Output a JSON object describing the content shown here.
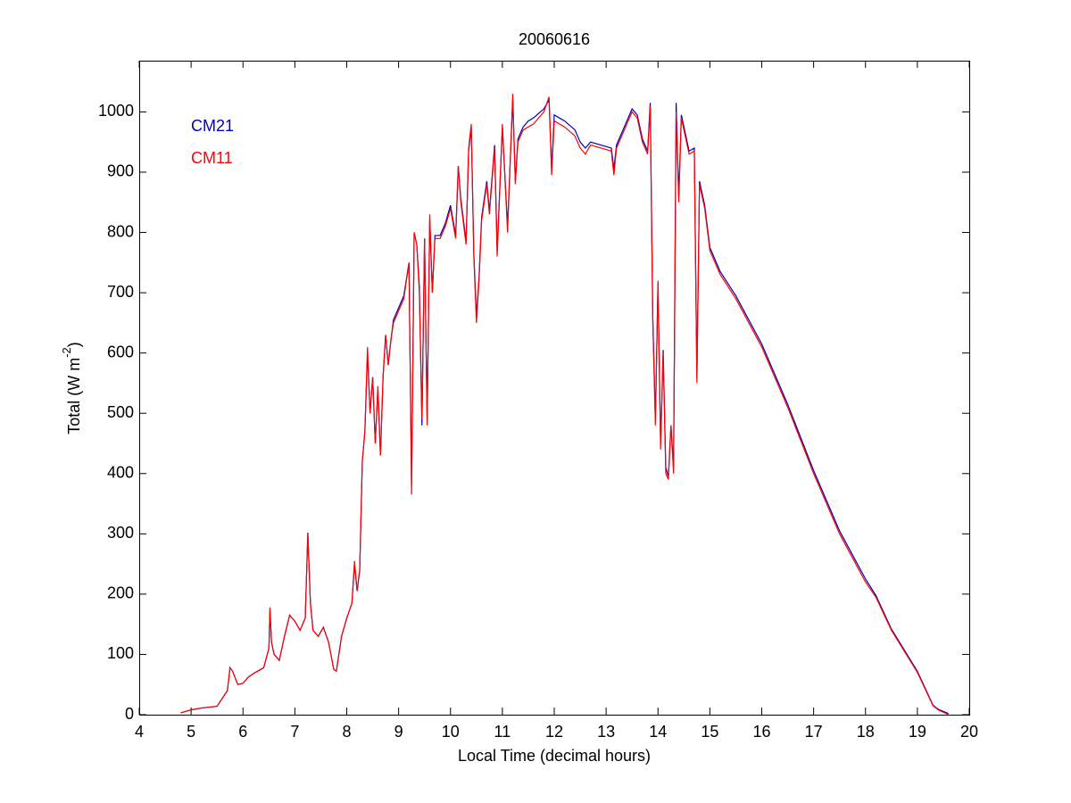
{
  "chart_data": {
    "type": "line",
    "title": "20060616",
    "xlabel": "Local Time (decimal hours)",
    "ylabel": {
      "text": "Total (W m",
      "superscript": "-2",
      "suffix": ")"
    },
    "legend": "upper left",
    "xlim": [
      4,
      20
    ],
    "xticks": [
      4,
      5,
      6,
      7,
      8,
      9,
      10,
      11,
      12,
      13,
      14,
      15,
      16,
      17,
      18,
      19,
      20
    ],
    "ylim": [
      0,
      1085
    ],
    "yticks": [
      0,
      100,
      200,
      300,
      400,
      500,
      600,
      700,
      800,
      900,
      1000
    ],
    "x": [
      4.8,
      5.0,
      5.2,
      5.5,
      5.7,
      5.75,
      5.8,
      5.9,
      6.0,
      6.1,
      6.2,
      6.4,
      6.5,
      6.52,
      6.55,
      6.6,
      6.7,
      6.8,
      6.9,
      7.0,
      7.1,
      7.2,
      7.25,
      7.3,
      7.35,
      7.45,
      7.55,
      7.65,
      7.75,
      7.8,
      7.9,
      8.0,
      8.1,
      8.15,
      8.2,
      8.25,
      8.3,
      8.35,
      8.4,
      8.45,
      8.5,
      8.55,
      8.6,
      8.65,
      8.7,
      8.75,
      8.8,
      8.85,
      8.9,
      9.0,
      9.1,
      9.2,
      9.25,
      9.3,
      9.35,
      9.4,
      9.45,
      9.5,
      9.55,
      9.6,
      9.65,
      9.7,
      9.8,
      9.9,
      10.0,
      10.1,
      10.15,
      10.2,
      10.3,
      10.35,
      10.4,
      10.45,
      10.5,
      10.55,
      10.6,
      10.7,
      10.75,
      10.85,
      10.9,
      11.0,
      11.1,
      11.2,
      11.25,
      11.3,
      11.4,
      11.5,
      11.6,
      11.8,
      11.9,
      11.95,
      12.0,
      12.2,
      12.4,
      12.5,
      12.6,
      12.7,
      12.9,
      13.1,
      13.15,
      13.2,
      13.4,
      13.5,
      13.6,
      13.7,
      13.8,
      13.85,
      13.9,
      13.95,
      14.0,
      14.05,
      14.1,
      14.15,
      14.2,
      14.25,
      14.3,
      14.35,
      14.4,
      14.45,
      14.5,
      14.6,
      14.7,
      14.75,
      14.8,
      14.9,
      15.0,
      15.2,
      15.5,
      16.0,
      16.5,
      17.0,
      17.5,
      18.0,
      18.2,
      18.5,
      19.0,
      19.3,
      19.4,
      19.6
    ],
    "series": [
      {
        "name": "CM21",
        "color": "#0000bb",
        "values": [
          3,
          8,
          11,
          14,
          40,
          78,
          72,
          50,
          52,
          62,
          68,
          78,
          110,
          172,
          120,
          100,
          90,
          130,
          165,
          155,
          140,
          160,
          302,
          185,
          140,
          130,
          145,
          120,
          75,
          72,
          130,
          160,
          185,
          250,
          205,
          240,
          420,
          470,
          600,
          500,
          560,
          450,
          540,
          430,
          560,
          630,
          580,
          620,
          655,
          675,
          695,
          750,
          380,
          800,
          780,
          710,
          480,
          790,
          490,
          820,
          700,
          795,
          795,
          815,
          845,
          795,
          910,
          855,
          785,
          935,
          975,
          765,
          660,
          725,
          825,
          885,
          835,
          945,
          770,
          975,
          810,
          1020,
          885,
          955,
          975,
          985,
          990,
          1005,
          1020,
          905,
          995,
          985,
          970,
          950,
          940,
          950,
          945,
          940,
          905,
          945,
          985,
          1005,
          995,
          955,
          935,
          1015,
          660,
          490,
          715,
          450,
          605,
          410,
          395,
          480,
          410,
          1015,
          860,
          995,
          975,
          935,
          940,
          560,
          885,
          845,
          775,
          735,
          695,
          615,
          515,
          405,
          305,
          225,
          198,
          142,
          72,
          16,
          9,
          2
        ]
      },
      {
        "name": "CM11",
        "color": "#ff0000",
        "values": [
          3,
          8,
          11,
          14,
          40,
          78,
          72,
          50,
          52,
          62,
          68,
          78,
          110,
          178,
          120,
          100,
          90,
          130,
          165,
          155,
          140,
          160,
          300,
          185,
          140,
          130,
          145,
          120,
          75,
          72,
          130,
          160,
          185,
          255,
          205,
          240,
          420,
          470,
          610,
          500,
          560,
          450,
          545,
          430,
          560,
          630,
          580,
          620,
          650,
          670,
          690,
          750,
          365,
          800,
          780,
          700,
          490,
          790,
          480,
          830,
          700,
          790,
          790,
          810,
          840,
          790,
          910,
          850,
          780,
          940,
          980,
          760,
          650,
          720,
          820,
          880,
          830,
          940,
          760,
          980,
          800,
          1030,
          880,
          950,
          970,
          975,
          980,
          1000,
          1025,
          895,
          985,
          975,
          960,
          940,
          930,
          945,
          940,
          935,
          895,
          940,
          980,
          1000,
          990,
          950,
          930,
          1010,
          650,
          480,
          720,
          440,
          600,
          400,
          390,
          480,
          400,
          1000,
          850,
          990,
          970,
          930,
          935,
          550,
          880,
          840,
          770,
          730,
          690,
          610,
          510,
          400,
          300,
          220,
          195,
          140,
          70,
          15,
          8,
          0
        ]
      }
    ]
  }
}
